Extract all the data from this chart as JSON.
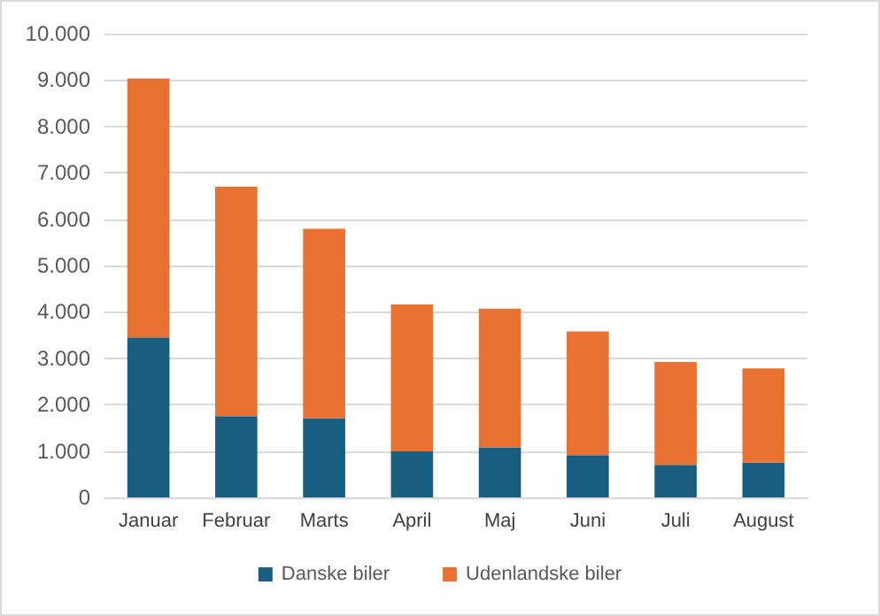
{
  "chart_data": {
    "type": "bar",
    "stacked": true,
    "categories": [
      "Januar",
      "Februar",
      "Marts",
      "April",
      "Maj",
      "Juni",
      "Juli",
      "August"
    ],
    "series": [
      {
        "name": "Danske biler",
        "color": "#175e80",
        "values": [
          3450,
          1750,
          1710,
          990,
          1080,
          910,
          700,
          750
        ]
      },
      {
        "name": "Udenlandske biler",
        "color": "#e97132",
        "values": [
          5580,
          4950,
          4080,
          3170,
          2990,
          2670,
          2220,
          2030
        ]
      }
    ],
    "ylim": [
      0,
      10000
    ],
    "yticks": [
      0,
      {
        "value": 1000,
        "label": "1.000"
      },
      {
        "value": 2000,
        "label": "2.000"
      },
      {
        "value": 3000,
        "label": "3.000"
      },
      {
        "value": 4000,
        "label": "4.000"
      },
      {
        "value": 5000,
        "label": "5.000"
      },
      {
        "value": 6000,
        "label": "6.000"
      },
      {
        "value": 7000,
        "label": "7.000"
      },
      {
        "value": 8000,
        "label": "8.000"
      },
      {
        "value": 9000,
        "label": "9.000"
      },
      {
        "value": 10000,
        "label": "10.000"
      }
    ],
    "grid": "y",
    "legend": "bottom"
  }
}
